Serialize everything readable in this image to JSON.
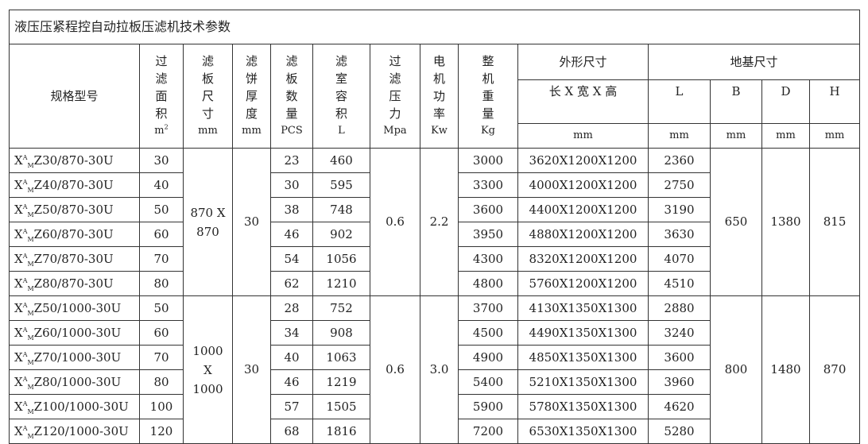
{
  "title": "液压压紧程控自动拉板压滤机技术参数",
  "headers": {
    "model": "规格型号",
    "area": [
      "过",
      "滤",
      "面",
      "积"
    ],
    "area_unit": "m",
    "area_unit_sup": "2",
    "plate_size": [
      "滤",
      "板",
      "尺",
      "寸"
    ],
    "plate_size_unit": "mm",
    "cake": [
      "滤",
      "饼",
      "厚",
      "度"
    ],
    "cake_unit": "mm",
    "plates": [
      "滤",
      "板",
      "数",
      "量"
    ],
    "plates_unit": "PCS",
    "volume": [
      "滤",
      "室",
      "容",
      "积"
    ],
    "volume_unit": "L",
    "pressure": [
      "过",
      "滤",
      "压",
      "力"
    ],
    "pressure_unit": "Mpa",
    "power": [
      "电",
      "机",
      "功",
      "率"
    ],
    "power_unit": "Kw",
    "weight": [
      "整",
      "机",
      "重",
      "量"
    ],
    "weight_unit": "Kg",
    "outline": "外形尺寸",
    "outline_sub": "长 X 宽 X 高",
    "outline_unit": "mm",
    "foundation": "地基尺寸",
    "L": "L",
    "B": "B",
    "D": "D",
    "H": "H",
    "mm": "mm"
  },
  "model_prefix": "X",
  "model_sup": "A",
  "model_sub": "M",
  "groups": [
    {
      "plate_size": [
        "870 X",
        "870"
      ],
      "cake": "30",
      "pressure": "0.6",
      "power": "2.2",
      "B": "650",
      "D": "1380",
      "H": "815",
      "rows": [
        {
          "model": "Z30/870-30U",
          "area": "30",
          "plates": "23",
          "volume": "460",
          "weight": "3000",
          "outline": "3620X1200X1200",
          "L": "2360"
        },
        {
          "model": "Z40/870-30U",
          "area": "40",
          "plates": "30",
          "volume": "595",
          "weight": "3300",
          "outline": "4000X1200X1200",
          "L": "2750"
        },
        {
          "model": "Z50/870-30U",
          "area": "50",
          "plates": "38",
          "volume": "748",
          "weight": "3600",
          "outline": "4400X1200X1200",
          "L": "3190"
        },
        {
          "model": "Z60/870-30U",
          "area": "60",
          "plates": "46",
          "volume": "902",
          "weight": "3950",
          "outline": "4880X1200X1200",
          "L": "3630"
        },
        {
          "model": "Z70/870-30U",
          "area": "70",
          "plates": "54",
          "volume": "1056",
          "weight": "4300",
          "outline": "8320X1200X1200",
          "L": "4070"
        },
        {
          "model": "Z80/870-30U",
          "area": "80",
          "plates": "62",
          "volume": "1210",
          "weight": "4800",
          "outline": "5760X1200X1200",
          "L": "4510"
        }
      ]
    },
    {
      "plate_size": [
        "1000",
        "X",
        "1000"
      ],
      "cake": "30",
      "pressure": "0.6",
      "power": "3.0",
      "B": "800",
      "D": "1480",
      "H": "870",
      "rows": [
        {
          "model": "Z50/1000-30U",
          "area": "50",
          "plates": "28",
          "volume": "752",
          "weight": "3700",
          "outline": "4130X1350X1300",
          "L": "2880"
        },
        {
          "model": "Z60/1000-30U",
          "area": "60",
          "plates": "34",
          "volume": "908",
          "weight": "4500",
          "outline": "4490X1350X1300",
          "L": "3240"
        },
        {
          "model": "Z70/1000-30U",
          "area": "70",
          "plates": "40",
          "volume": "1063",
          "weight": "4900",
          "outline": "4850X1350X1300",
          "L": "3600"
        },
        {
          "model": "Z80/1000-30U",
          "area": "80",
          "plates": "46",
          "volume": "1219",
          "weight": "5400",
          "outline": "5210X1350X1300",
          "L": "3960"
        },
        {
          "model": "Z100/1000-30U",
          "area": "100",
          "plates": "57",
          "volume": "1505",
          "weight": "5900",
          "outline": "5780X1350X1300",
          "L": "4620"
        },
        {
          "model": "Z120/1000-30U",
          "area": "120",
          "plates": "68",
          "volume": "1816",
          "weight": "7200",
          "outline": "6530X1350X1300",
          "L": "5280"
        }
      ]
    }
  ]
}
